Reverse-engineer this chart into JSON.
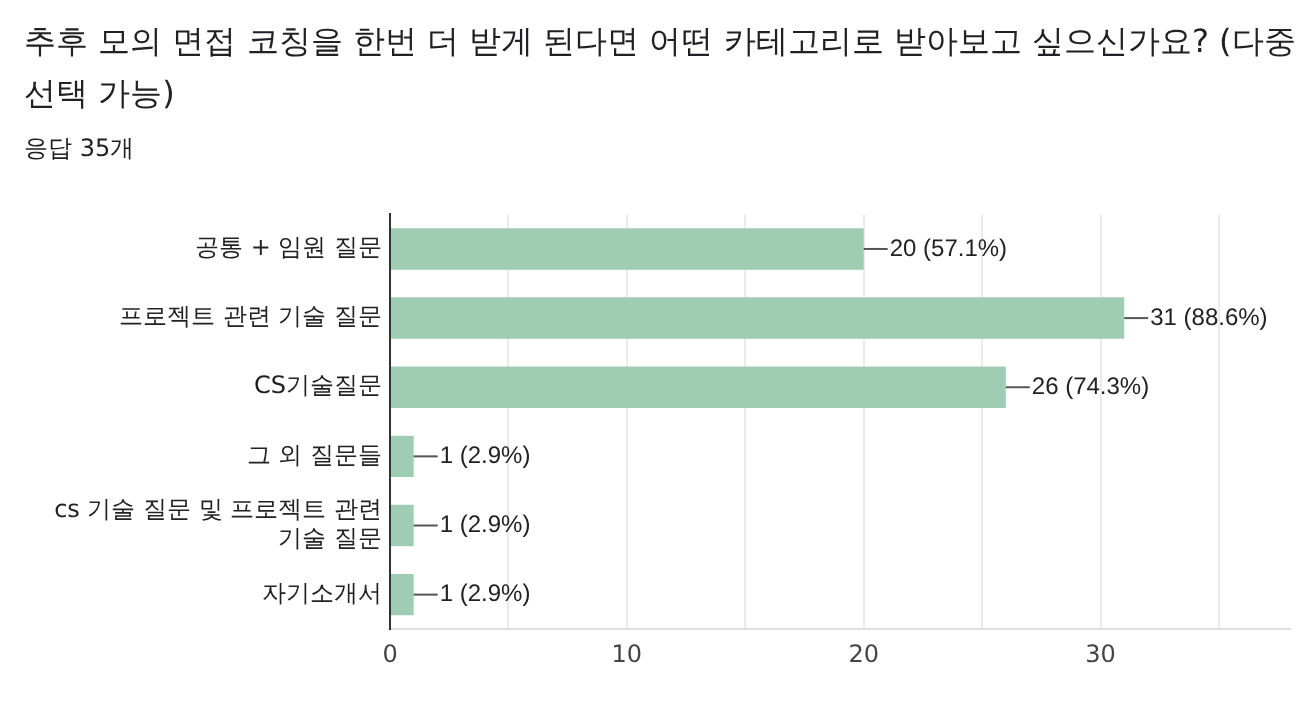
{
  "chart_data": {
    "type": "bar",
    "orientation": "horizontal",
    "title": "추후 모의 면접 코칭을 한번 더 받게 된다면 어떤 카테고리로 받아보고 싶으신가요? (다중 선택 가능)",
    "subtitle": "응답 35개",
    "categories": [
      "공통 + 임원 질문",
      "프로젝트 관련 기술 질문",
      "CS기술질문",
      "그 외 질문들",
      "cs 기술 질문 및 프로젝트 관련 기술 질문",
      "자기소개서"
    ],
    "values": [
      20,
      31,
      26,
      1,
      1,
      1
    ],
    "value_labels": [
      "20 (57.1%)",
      "31 (88.6%)",
      "26 (74.3%)",
      "1 (2.9%)",
      "1 (2.9%)",
      "1 (2.9%)"
    ],
    "color": "#9fcdb3",
    "xlim": [
      0,
      38
    ],
    "xticks": [
      0,
      {
        "value": 5,
        "label": null
      },
      10,
      {
        "value": 15,
        "label": null
      },
      20,
      {
        "value": 25,
        "label": null
      },
      30,
      {
        "value": 35,
        "label": null
      }
    ],
    "grid": "x"
  }
}
